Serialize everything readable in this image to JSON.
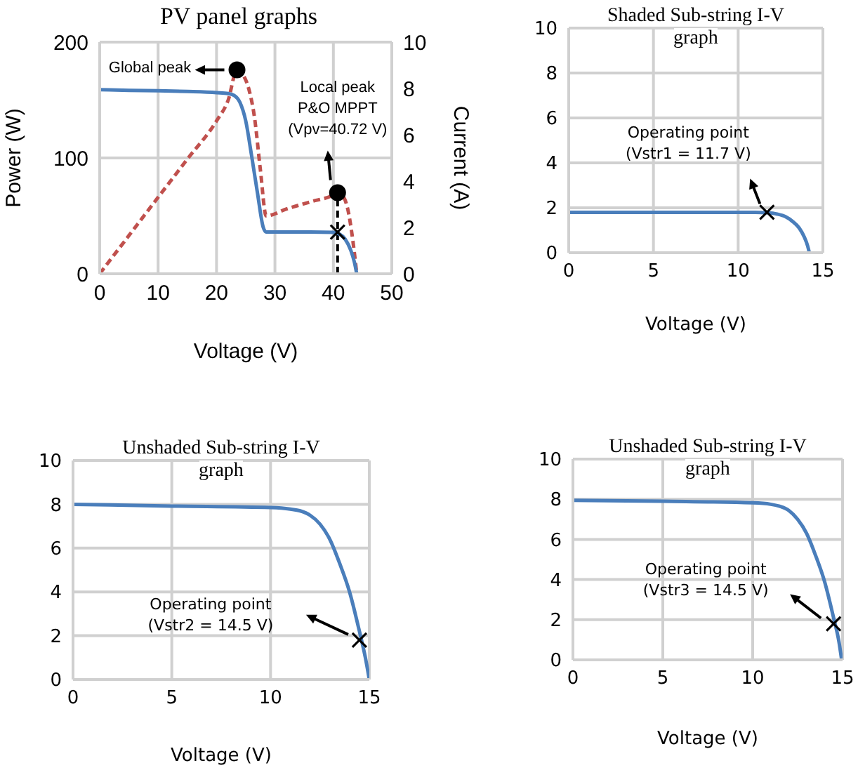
{
  "chart_data": [
    {
      "type": "line",
      "title": "PV panel graphs",
      "xlabel": "Voltage (V)",
      "ylabel": "Power (W)",
      "y2label": "Current (A)",
      "xlim": [
        0,
        50
      ],
      "xticks": [
        0,
        10,
        20,
        30,
        40,
        50
      ],
      "ylim": [
        0,
        200
      ],
      "yticks": [
        0,
        100,
        200
      ],
      "y2lim": [
        0,
        10
      ],
      "y2ticks": [
        0,
        2,
        4,
        6,
        8,
        10
      ],
      "grid": true,
      "series": [
        {
          "color": "#c0504d",
          "line_style": "dashed",
          "x": [
            0,
            5,
            10,
            15,
            20,
            22,
            23.5,
            24.5,
            25.5,
            26.5,
            27.5,
            28.5,
            32,
            36,
            40,
            40.72,
            41.5,
            42.5,
            43.3,
            44
          ],
          "values": [
            0,
            33,
            66,
            99,
            132,
            150,
            176,
            172,
            160,
            135,
            90,
            50,
            56,
            62,
            68,
            70,
            68,
            55,
            30,
            0
          ]
        },
        {
          "color": "#4a7ebb",
          "axis": "y2",
          "x": [
            0,
            5,
            10,
            15,
            20,
            22,
            23,
            24,
            25,
            26,
            27,
            28,
            28.5,
            32,
            36,
            40,
            41,
            42,
            43,
            43.6,
            44
          ],
          "values": [
            7.95,
            7.92,
            7.9,
            7.87,
            7.82,
            7.78,
            7.7,
            7.4,
            6.6,
            5.1,
            3.5,
            2.0,
            1.8,
            1.8,
            1.8,
            1.79,
            1.72,
            1.5,
            1.0,
            0.5,
            0
          ]
        },
        {
          "type": "scatter",
          "marker": "circle",
          "color": "#000000",
          "x": [
            23.5,
            40.72
          ],
          "values": [
            176,
            70
          ]
        },
        {
          "type": "scatter",
          "marker": "cross",
          "color": "#000000",
          "axis": "y2",
          "x": [
            40.72
          ],
          "values": [
            1.8
          ]
        }
      ],
      "ref_lines": [
        {
          "axis": "x",
          "value": 40.72,
          "color": "#000000",
          "line_style": "dashed"
        }
      ],
      "annotations": [
        "Global peak",
        "Local peak\nP&O MPPT\n(Vpv=40.72 V)"
      ]
    },
    {
      "type": "line",
      "title": "Shaded Sub-string I-V graph",
      "xlabel": "Voltage (V)",
      "xlim": [
        0,
        15
      ],
      "xticks": [
        0,
        5,
        10,
        15
      ],
      "ylim": [
        0,
        10
      ],
      "yticks": [
        0,
        2,
        4,
        6,
        8,
        10
      ],
      "grid": true,
      "series": [
        {
          "color": "#4a7ebb",
          "x": [
            0,
            5,
            10,
            11,
            11.7,
            12.3,
            12.8,
            13.2,
            13.6,
            13.9,
            14.1,
            14.2
          ],
          "values": [
            1.8,
            1.8,
            1.8,
            1.8,
            1.78,
            1.72,
            1.6,
            1.4,
            1.1,
            0.7,
            0.3,
            0
          ]
        },
        {
          "type": "scatter",
          "marker": "cross",
          "color": "#000000",
          "x": [
            11.7
          ],
          "values": [
            1.8
          ]
        }
      ],
      "annotations": [
        "Operating point\n(Vstr1 = 11.7 V)"
      ]
    },
    {
      "type": "line",
      "title": "Unshaded Sub-string I-V graph",
      "xlabel": "Voltage (V)",
      "xlim": [
        0,
        15
      ],
      "xticks": [
        0,
        5,
        10,
        15
      ],
      "ylim": [
        0,
        10
      ],
      "yticks": [
        0,
        2,
        4,
        6,
        8,
        10
      ],
      "grid": true,
      "series": [
        {
          "color": "#4a7ebb",
          "x": [
            0,
            5,
            10,
            11,
            11.5,
            12,
            12.5,
            13,
            13.5,
            14,
            14.5,
            14.8,
            15
          ],
          "values": [
            8.0,
            7.92,
            7.85,
            7.78,
            7.7,
            7.5,
            7.1,
            6.4,
            5.3,
            4.0,
            2.2,
            1.0,
            0
          ]
        },
        {
          "type": "scatter",
          "marker": "cross",
          "color": "#000000",
          "x": [
            14.5
          ],
          "values": [
            1.8
          ]
        }
      ],
      "annotations": [
        "Operating point\n(Vstr2 = 14.5 V)"
      ]
    },
    {
      "type": "line",
      "title": "Unshaded Sub-string I-V graph",
      "xlabel": "Voltage (V)",
      "xlim": [
        0,
        15
      ],
      "xticks": [
        0,
        5,
        10,
        15
      ],
      "ylim": [
        0,
        10
      ],
      "yticks": [
        0,
        2,
        4,
        6,
        8,
        10
      ],
      "grid": true,
      "series": [
        {
          "color": "#4a7ebb",
          "x": [
            0,
            5,
            10,
            11,
            11.5,
            12,
            12.5,
            13,
            13.5,
            14,
            14.5,
            14.8,
            14.95
          ],
          "values": [
            7.95,
            7.9,
            7.82,
            7.75,
            7.65,
            7.45,
            7.0,
            6.3,
            5.2,
            3.9,
            2.1,
            0.9,
            0
          ]
        },
        {
          "type": "scatter",
          "marker": "cross",
          "color": "#000000",
          "x": [
            14.5
          ],
          "values": [
            1.8
          ]
        }
      ],
      "annotations": [
        "Operating point\n(Vstr3 = 14.5 V)"
      ]
    }
  ]
}
